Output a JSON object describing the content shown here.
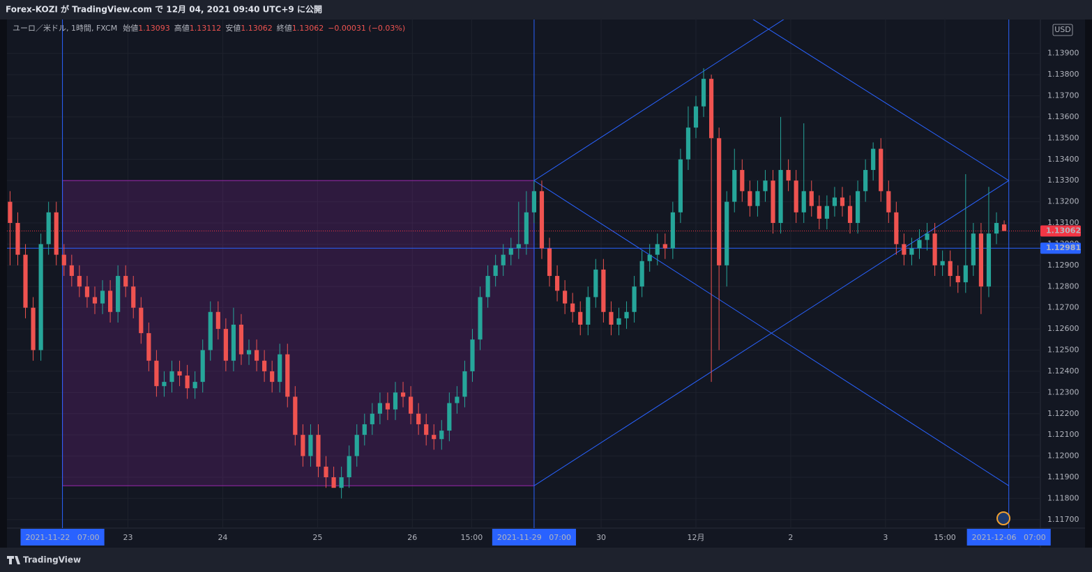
{
  "chart_data": {
    "type": "candlestick",
    "title": "Forex-KOZI が TradingView.com で 12月 04, 2021 09:40 UTC+9 に公開",
    "symbol": "ユーロ／米ドル, 1時間, FXCM",
    "ohlc_labels": [
      "始値",
      "高値",
      "安値",
      "終値"
    ],
    "ohlc_values": [
      1.13093,
      1.13112,
      1.13062,
      1.13062
    ],
    "change": "−0.00031 (−0.03%)",
    "currency": "USD",
    "brand": "TradingView",
    "up_color": "#26a69a",
    "down_color": "#ef5350",
    "open": [
      1.132,
      1.131,
      1.1295,
      1.127,
      1.125,
      1.13,
      1.1315,
      1.1295,
      1.129,
      1.1285,
      1.128,
      1.1275,
      1.1272,
      1.1278,
      1.1268,
      1.1285,
      1.128,
      1.127,
      1.1258,
      1.1245,
      1.1233,
      1.1235,
      1.124,
      1.1238,
      1.1232,
      1.1235,
      1.125,
      1.1268,
      1.126,
      1.1245,
      1.1262,
      1.1248,
      1.125,
      1.1245,
      1.124,
      1.1235,
      1.1248,
      1.1228,
      1.121,
      1.12,
      1.121,
      1.1195,
      1.119,
      1.1185,
      1.119,
      1.12,
      1.121,
      1.1215,
      1.122,
      1.1225,
      1.1222,
      1.123,
      1.1228,
      1.122,
      1.1215,
      1.121,
      1.1208,
      1.1212,
      1.1225,
      1.1228,
      1.124,
      1.1255,
      1.1275,
      1.1285,
      1.129,
      1.1295,
      1.1298,
      1.13,
      1.1315,
      1.1325,
      1.1298,
      1.1285,
      1.1278,
      1.1272,
      1.1268,
      1.1262,
      1.1275,
      1.1288,
      1.1268,
      1.1262,
      1.1265,
      1.1268,
      1.128,
      1.1292,
      1.1295,
      1.13,
      1.1298,
      1.1315,
      1.134,
      1.1355,
      1.1365,
      1.1378,
      1.135,
      1.129,
      1.132,
      1.1335,
      1.1325,
      1.1318,
      1.1325,
      1.133,
      1.131,
      1.1335,
      1.133,
      1.1315,
      1.1325,
      1.1318,
      1.1312,
      1.1318,
      1.1322,
      1.1318,
      1.131,
      1.1325,
      1.1335,
      1.1345,
      1.1325,
      1.1315,
      1.13,
      1.1295,
      1.1298,
      1.1302,
      1.1305,
      1.129,
      1.1292,
      1.1285,
      1.1282,
      1.129,
      1.1305,
      1.128,
      1.1305,
      1.13093
    ],
    "high": [
      1.1325,
      1.1315,
      1.13,
      1.1275,
      1.1305,
      1.132,
      1.132,
      1.13,
      1.1295,
      1.129,
      1.1285,
      1.128,
      1.1283,
      1.1283,
      1.129,
      1.129,
      1.1285,
      1.1275,
      1.1263,
      1.125,
      1.124,
      1.1245,
      1.1245,
      1.1243,
      1.124,
      1.1255,
      1.1273,
      1.1273,
      1.1265,
      1.127,
      1.1267,
      1.1255,
      1.1255,
      1.125,
      1.1245,
      1.1253,
      1.1253,
      1.1233,
      1.1215,
      1.1215,
      1.1215,
      1.12,
      1.1195,
      1.1195,
      1.1205,
      1.1215,
      1.122,
      1.1225,
      1.123,
      1.123,
      1.1235,
      1.1235,
      1.1233,
      1.1225,
      1.122,
      1.1215,
      1.1217,
      1.123,
      1.1233,
      1.1245,
      1.126,
      1.128,
      1.129,
      1.1295,
      1.13,
      1.1303,
      1.132,
      1.1325,
      1.133,
      1.133,
      1.1303,
      1.129,
      1.1283,
      1.1277,
      1.1273,
      1.128,
      1.1293,
      1.1293,
      1.1273,
      1.127,
      1.1273,
      1.1285,
      1.1297,
      1.13,
      1.1305,
      1.1305,
      1.132,
      1.1345,
      1.1365,
      1.137,
      1.1383,
      1.138,
      1.1355,
      1.1325,
      1.1345,
      1.134,
      1.133,
      1.133,
      1.1335,
      1.1335,
      1.136,
      1.134,
      1.1335,
      1.1357,
      1.133,
      1.1323,
      1.1323,
      1.1327,
      1.1327,
      1.1323,
      1.133,
      1.134,
      1.1348,
      1.135,
      1.133,
      1.132,
      1.1305,
      1.1303,
      1.1307,
      1.131,
      1.131,
      1.1297,
      1.1297,
      1.129,
      1.1333,
      1.131,
      1.131,
      1.1327,
      1.1315,
      1.13112
    ],
    "low": [
      1.129,
      1.129,
      1.1265,
      1.1245,
      1.1245,
      1.1295,
      1.129,
      1.1285,
      1.128,
      1.1275,
      1.127,
      1.1267,
      1.1267,
      1.1263,
      1.1263,
      1.1275,
      1.1265,
      1.1253,
      1.124,
      1.1228,
      1.1228,
      1.123,
      1.1233,
      1.1227,
      1.1227,
      1.123,
      1.1245,
      1.1255,
      1.124,
      1.124,
      1.1243,
      1.1243,
      1.124,
      1.1235,
      1.123,
      1.123,
      1.1223,
      1.1205,
      1.1195,
      1.1195,
      1.119,
      1.1185,
      1.1186,
      1.118,
      1.1185,
      1.1195,
      1.1205,
      1.121,
      1.1215,
      1.1217,
      1.1217,
      1.1223,
      1.1215,
      1.121,
      1.1205,
      1.1203,
      1.1203,
      1.1207,
      1.122,
      1.1223,
      1.1235,
      1.125,
      1.127,
      1.128,
      1.1285,
      1.129,
      1.1293,
      1.1295,
      1.131,
      1.1293,
      1.128,
      1.1273,
      1.1267,
      1.1263,
      1.1257,
      1.1257,
      1.127,
      1.1263,
      1.1257,
      1.1257,
      1.126,
      1.1263,
      1.1275,
      1.1287,
      1.129,
      1.1293,
      1.1293,
      1.131,
      1.1335,
      1.135,
      1.136,
      1.1235,
      1.125,
      1.128,
      1.1315,
      1.132,
      1.1313,
      1.1313,
      1.132,
      1.1305,
      1.1305,
      1.1325,
      1.131,
      1.131,
      1.1313,
      1.1307,
      1.1307,
      1.1313,
      1.1313,
      1.1305,
      1.1305,
      1.132,
      1.133,
      1.132,
      1.131,
      1.1295,
      1.129,
      1.129,
      1.1293,
      1.1297,
      1.1285,
      1.1285,
      1.128,
      1.1277,
      1.1277,
      1.1285,
      1.1267,
      1.1275,
      1.13,
      1.13062
    ],
    "close": [
      1.131,
      1.1295,
      1.127,
      1.125,
      1.13,
      1.1315,
      1.1295,
      1.129,
      1.1285,
      1.128,
      1.1275,
      1.1272,
      1.1278,
      1.1268,
      1.1285,
      1.128,
      1.127,
      1.1258,
      1.1245,
      1.1233,
      1.1235,
      1.124,
      1.1238,
      1.1232,
      1.1235,
      1.125,
      1.1268,
      1.126,
      1.1245,
      1.1262,
      1.1248,
      1.125,
      1.1245,
      1.124,
      1.1235,
      1.1248,
      1.1228,
      1.121,
      1.12,
      1.121,
      1.1195,
      1.119,
      1.1185,
      1.119,
      1.12,
      1.121,
      1.1215,
      1.122,
      1.1225,
      1.1222,
      1.123,
      1.1228,
      1.122,
      1.1215,
      1.121,
      1.1208,
      1.1212,
      1.1225,
      1.1228,
      1.124,
      1.1255,
      1.1275,
      1.1285,
      1.129,
      1.1295,
      1.1298,
      1.13,
      1.1315,
      1.1325,
      1.1298,
      1.1285,
      1.1278,
      1.1272,
      1.1268,
      1.1262,
      1.1275,
      1.1288,
      1.1268,
      1.1262,
      1.1265,
      1.1268,
      1.128,
      1.1292,
      1.1295,
      1.13,
      1.1298,
      1.1315,
      1.134,
      1.1355,
      1.1365,
      1.1378,
      1.135,
      1.129,
      1.132,
      1.1335,
      1.1325,
      1.1318,
      1.1325,
      1.133,
      1.131,
      1.1335,
      1.133,
      1.1315,
      1.1325,
      1.1318,
      1.1312,
      1.1318,
      1.1322,
      1.1318,
      1.131,
      1.1325,
      1.1335,
      1.1345,
      1.1325,
      1.1315,
      1.13,
      1.1295,
      1.1298,
      1.1302,
      1.1305,
      1.129,
      1.1292,
      1.1285,
      1.1282,
      1.129,
      1.1305,
      1.128,
      1.1305,
      1.131,
      1.13062
    ],
    "xlim": [
      -0.4,
      133.7
    ],
    "xticks": [
      {
        "value": 6.8,
        "label": "2021-11-22   07:00"
      },
      {
        "value": 15.3,
        "label": "23"
      },
      {
        "value": 27.6,
        "label": "24"
      },
      {
        "value": 39.9,
        "label": "25"
      },
      {
        "value": 52.2,
        "label": "26"
      },
      {
        "value": 59.9,
        "label": "15:00"
      },
      {
        "value": 68,
        "label": "2021-11-29   07:00"
      },
      {
        "value": 76.7,
        "label": "30"
      },
      {
        "value": 89,
        "label": "12月"
      },
      {
        "value": 101.3,
        "label": "2"
      },
      {
        "value": 113.6,
        "label": "3"
      },
      {
        "value": 121.3,
        "label": "15:00"
      },
      {
        "value": 129.6,
        "label": "2021-12-06   07:00"
      }
    ],
    "ylim": [
      1.1166,
      1.1406
    ],
    "yticks": [
      {
        "value": 1.117,
        "label": "1.11700"
      },
      {
        "value": 1.118,
        "label": "1.11800"
      },
      {
        "value": 1.119,
        "label": "1.11900"
      },
      {
        "value": 1.12,
        "label": "1.12000"
      },
      {
        "value": 1.121,
        "label": "1.12100"
      },
      {
        "value": 1.122,
        "label": "1.12200"
      },
      {
        "value": 1.123,
        "label": "1.12300"
      },
      {
        "value": 1.124,
        "label": "1.12400"
      },
      {
        "value": 1.125,
        "label": "1.12500"
      },
      {
        "value": 1.126,
        "label": "1.12600"
      },
      {
        "value": 1.127,
        "label": "1.12700"
      },
      {
        "value": 1.128,
        "label": "1.12800"
      },
      {
        "value": 1.129,
        "label": "1.12900"
      },
      {
        "value": 1.13,
        "label": "1.13000"
      },
      {
        "value": 1.131,
        "label": "1.13100"
      },
      {
        "value": 1.132,
        "label": "1.13200"
      },
      {
        "value": 1.133,
        "label": "1.13300"
      },
      {
        "value": 1.134,
        "label": "1.13400"
      },
      {
        "value": 1.135,
        "label": "1.13500"
      },
      {
        "value": 1.136,
        "label": "1.13600"
      },
      {
        "value": 1.137,
        "label": "1.13700"
      },
      {
        "value": 1.138,
        "label": "1.13800"
      },
      {
        "value": 1.139,
        "label": "1.13900"
      }
    ],
    "grid": true,
    "vlines": [
      6.8,
      68,
      129.6
    ],
    "drawing_color": "#2962ff",
    "rectangle": {
      "x": [
        6.8,
        68
      ],
      "y": [
        1.1186,
        1.133
      ],
      "color": "#9c27b0"
    },
    "trend_lines": [
      {
        "x": [
          68,
          129.6
        ],
        "y": [
          1.133,
          1.1186
        ]
      },
      {
        "x": [
          68,
          129.6
        ],
        "y": [
          1.1186,
          1.133
        ]
      },
      {
        "x": [
          68,
          100.8
        ],
        "y": [
          1.133,
          1.1407
        ]
      },
      {
        "x": [
          96,
          129.6
        ],
        "y": [
          1.1407,
          1.133
        ]
      }
    ],
    "price_lines": [
      {
        "value": 1.13062,
        "color": "#f23645",
        "style": "dotted"
      },
      {
        "value": 1.12981,
        "color": "#2962ff",
        "style": "solid"
      }
    ]
  }
}
